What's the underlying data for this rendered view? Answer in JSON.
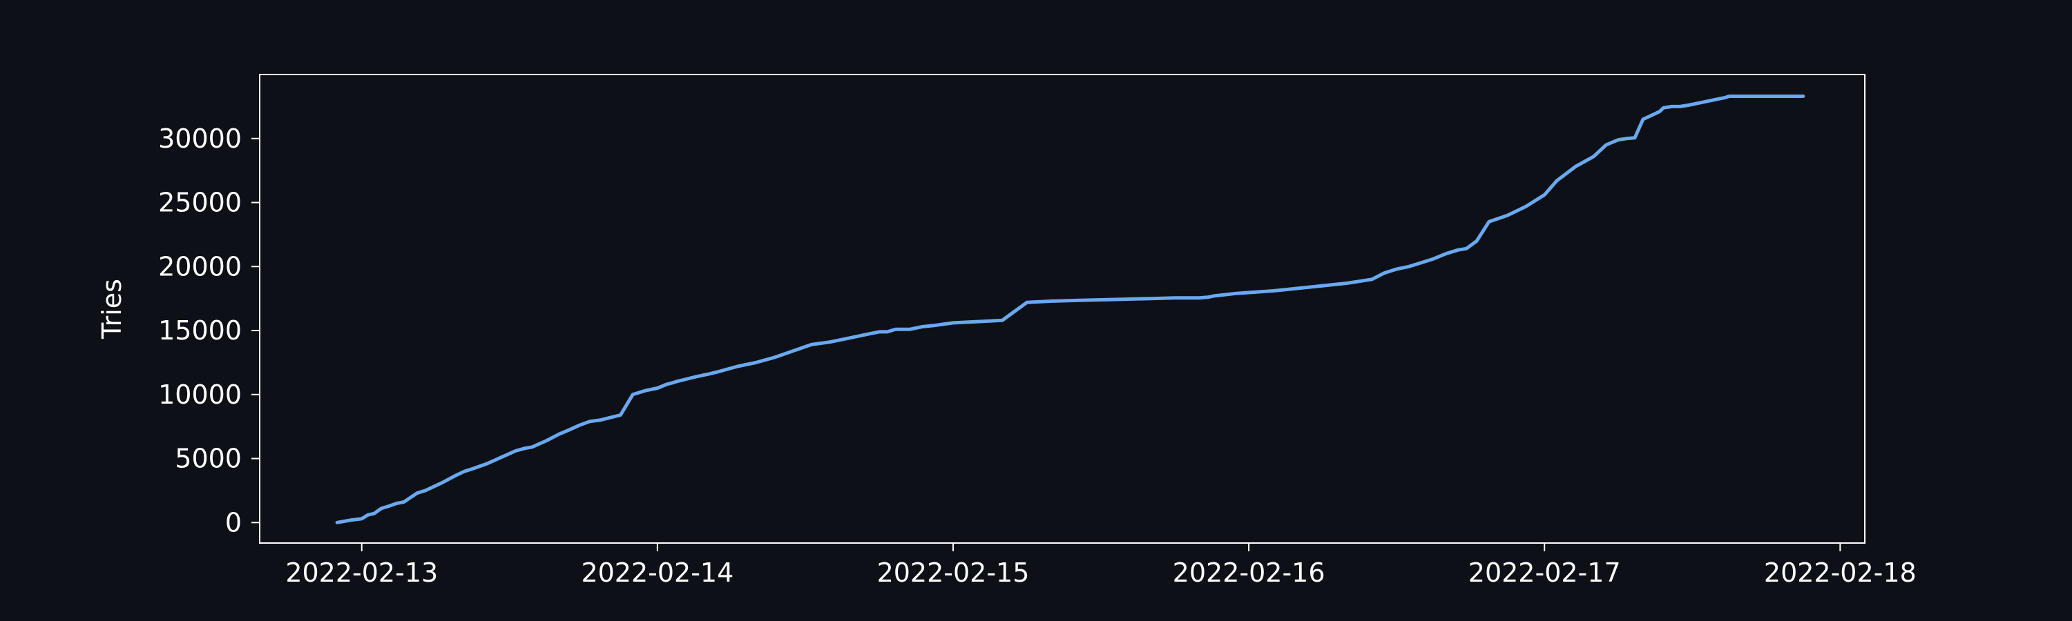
{
  "chart_data": {
    "type": "line",
    "title": "",
    "xlabel": "",
    "ylabel": "Tries",
    "x_ticks": [
      "2022-02-13",
      "2022-02-14",
      "2022-02-15",
      "2022-02-16",
      "2022-02-17",
      "2022-02-18"
    ],
    "y_ticks": [
      0,
      5000,
      10000,
      15000,
      20000,
      25000,
      30000
    ],
    "xlim": [
      "2022-02-12 15:43",
      "2022-02-18 02:00"
    ],
    "ylim": [
      -1600,
      35000
    ],
    "grid": false,
    "colors": {
      "background": "#0d1117",
      "axes": "#ffffff",
      "text": "#ffffff",
      "line": "#6aa8f0"
    },
    "series": [
      {
        "x": [
          "2022-02-12 22:00",
          "2022-02-12 23:10",
          "2022-02-13 00:00",
          "2022-02-13 00:30",
          "2022-02-13 01:00",
          "2022-02-13 01:35",
          "2022-02-13 02:15",
          "2022-02-13 02:50",
          "2022-02-13 03:25",
          "2022-02-13 04:30",
          "2022-02-13 05:10",
          "2022-02-13 05:50",
          "2022-02-13 06:30",
          "2022-02-13 07:40",
          "2022-02-13 08:20",
          "2022-02-13 09:00",
          "2022-02-13 10:10",
          "2022-02-13 11:20",
          "2022-02-13 12:30",
          "2022-02-13 13:15",
          "2022-02-13 13:50",
          "2022-02-13 15:00",
          "2022-02-13 16:00",
          "2022-02-13 16:45",
          "2022-02-13 17:40",
          "2022-02-13 18:30",
          "2022-02-13 19:20",
          "2022-02-13 20:10",
          "2022-02-13 21:00",
          "2022-02-13 22:00",
          "2022-02-13 23:00",
          "2022-02-14 00:00",
          "2022-02-14 00:45",
          "2022-02-14 01:10",
          "2022-02-14 01:30",
          "2022-02-14 02:20",
          "2022-02-14 03:10",
          "2022-02-14 04:10",
          "2022-02-14 05:00",
          "2022-02-14 06:30",
          "2022-02-14 08:00",
          "2022-02-14 09:30",
          "2022-02-14 11:00",
          "2022-02-14 12:30",
          "2022-02-14 14:00",
          "2022-02-14 15:30",
          "2022-02-14 17:00",
          "2022-02-14 18:00",
          "2022-02-14 18:40",
          "2022-02-14 19:20",
          "2022-02-14 20:30",
          "2022-02-14 21:30",
          "2022-02-14 22:30",
          "2022-02-15 00:00",
          "2022-02-15 02:00",
          "2022-02-15 04:00",
          "2022-02-15 06:00",
          "2022-02-15 08:00",
          "2022-02-15 10:00",
          "2022-02-15 12:00",
          "2022-02-15 14:00",
          "2022-02-15 16:00",
          "2022-02-15 18:00",
          "2022-02-15 20:00",
          "2022-02-15 20:40",
          "2022-02-15 21:10",
          "2022-02-15 23:00",
          "2022-02-16 02:00",
          "2022-02-16 05:00",
          "2022-02-16 08:00",
          "2022-02-16 10:00",
          "2022-02-16 11:00",
          "2022-02-16 12:00",
          "2022-02-16 13:00",
          "2022-02-16 14:00",
          "2022-02-16 15:00",
          "2022-02-16 16:00",
          "2022-02-16 17:00",
          "2022-02-16 17:40",
          "2022-02-16 18:30",
          "2022-02-16 19:30",
          "2022-02-16 21:00",
          "2022-02-16 22:30",
          "2022-02-17 00:00",
          "2022-02-17 01:00",
          "2022-02-17 02:30",
          "2022-02-17 04:00",
          "2022-02-17 05:00",
          "2022-02-17 06:00",
          "2022-02-17 06:40",
          "2022-02-17 07:20",
          "2022-02-17 08:00",
          "2022-02-17 08:40",
          "2022-02-17 09:20",
          "2022-02-17 09:40",
          "2022-02-17 10:20",
          "2022-02-17 11:00",
          "2022-02-17 11:40",
          "2022-02-17 12:40",
          "2022-02-17 13:40",
          "2022-02-17 14:40",
          "2022-02-17 15:00",
          "2022-02-17 15:10",
          "2022-02-17 15:50",
          "2022-02-17 16:50",
          "2022-02-17 17:50",
          "2022-02-17 18:50",
          "2022-02-17 19:50",
          "2022-02-17 21:00"
        ],
        "y": [
          0,
          200,
          300,
          600,
          700,
          1100,
          1300,
          1500,
          1600,
          2300,
          2500,
          2800,
          3100,
          3700,
          4000,
          4200,
          4600,
          5100,
          5600,
          5800,
          5900,
          6400,
          6900,
          7200,
          7600,
          7900,
          8000,
          8200,
          8400,
          10000,
          10300,
          10500,
          10800,
          10900,
          11000,
          11200,
          11400,
          11600,
          11800,
          12200,
          12500,
          12900,
          13400,
          13900,
          14100,
          14400,
          14700,
          14900,
          14900,
          15100,
          15100,
          15300,
          15400,
          15600,
          15700,
          15800,
          17200,
          17300,
          17350,
          17400,
          17450,
          17500,
          17550,
          17550,
          17600,
          17700,
          17900,
          18100,
          18400,
          18700,
          19000,
          19500,
          19800,
          20000,
          20300,
          20600,
          21000,
          21300,
          21400,
          22000,
          23500,
          24000,
          24700,
          25600,
          26700,
          27800,
          28600,
          29500,
          29900,
          30000,
          30050,
          31500,
          31800,
          32100,
          32400,
          32500,
          32500,
          32600,
          32800,
          33000,
          33200,
          33300,
          33300,
          33300,
          33300,
          33300,
          33300,
          33300,
          33300
        ]
      }
    ]
  }
}
